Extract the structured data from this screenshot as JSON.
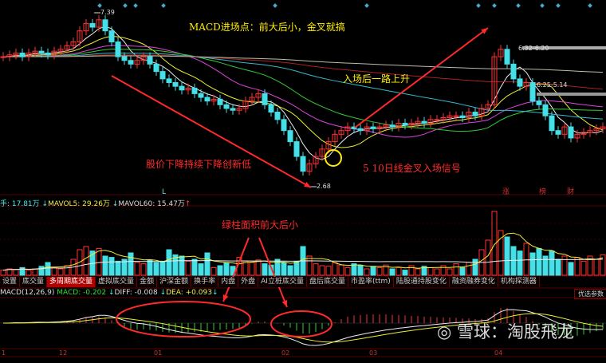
{
  "colors": {
    "up": "#ff3333",
    "down": "#44e0e8",
    "bg": "#000000",
    "annotation_yellow": "#ffee00",
    "annotation_red": "#ff2a2a"
  },
  "header": {
    "volume_info": "手: 17.81万",
    "mavol5": "MAVOL5: 29.26万",
    "mavol60": "MAVOL60: 15.47万",
    "macd_name": "MACD(12,26,9)",
    "macd_value": "MACD: -0.202",
    "diff_value": "DIFF: -0.008",
    "dea_value": "DEA: +0.093"
  },
  "price_labels": {
    "high": "7.39",
    "low": "2.68",
    "range1": "6.32-6.20",
    "range2": "6.25-5.14"
  },
  "event_marks": [
    "涨",
    "榜",
    "财"
  ],
  "low_mark": "L",
  "tabs": [
    "设置",
    "底交量",
    "多周期底交量",
    "虚拟底交量",
    "金额",
    "沪深金额",
    "换手率",
    "内盘",
    "外盘",
    "AI立桩底交量",
    "盘后底交量",
    "市盈率(ttm)",
    "陆股通持股变化",
    "融资融券变化",
    "机构探测器"
  ],
  "active_tab": 2,
  "optimize_button": "优选参数",
  "annotations": {
    "macd_entry": "MACD进场点：前大后小，金叉就搞",
    "rise": "入场后一路上升",
    "decline": "股价下降持续下降创新低",
    "golden_cross": "5 10日线金叉入场信号",
    "green_area": "绿柱面积前大后小"
  },
  "watermark": "雪球：淘股飛龙",
  "chart_data": {
    "type": "candlestick",
    "xlabel": "",
    "ylabel": "",
    "x_ticks": [
      "1",
      "12",
      "01",
      "02",
      "03",
      "04"
    ],
    "ylim": [
      2.5,
      7.6
    ],
    "high_marker": 7.39,
    "low_marker": 2.68,
    "close": [
      6.2,
      6.25,
      6.3,
      6.2,
      6.3,
      6.35,
      6.3,
      6.25,
      6.35,
      6.4,
      6.5,
      6.6,
      6.9,
      7.1,
      7.0,
      7.2,
      6.9,
      6.6,
      6.2,
      6.1,
      6.0,
      6.1,
      6.2,
      6.0,
      5.8,
      5.6,
      5.5,
      5.4,
      5.3,
      5.35,
      5.2,
      5.1,
      5.0,
      5.05,
      4.9,
      4.8,
      4.75,
      4.8,
      5.0,
      5.1,
      5.2,
      4.9,
      4.7,
      4.5,
      4.2,
      3.9,
      3.5,
      3.1,
      3.3,
      3.5,
      3.7,
      3.9,
      4.1,
      4.2,
      4.3,
      4.25,
      4.2,
      4.3,
      4.25,
      4.3,
      4.35,
      4.3,
      4.4,
      4.35,
      4.4,
      4.45,
      4.4,
      4.5,
      4.5,
      4.55,
      4.6,
      4.6,
      4.55,
      4.7,
      4.6,
      4.8,
      4.9,
      6.2,
      6.4,
      6.0,
      5.6,
      5.4,
      5.5,
      5.0,
      4.9,
      4.6,
      4.2,
      4.1,
      4.3,
      4.0,
      4.1,
      4.15,
      4.2,
      4.25,
      4.3
    ],
    "volume": [
      8,
      10,
      9,
      12,
      8,
      10,
      14,
      20,
      12,
      10,
      15,
      25,
      40,
      45,
      38,
      42,
      30,
      28,
      22,
      25,
      35,
      20,
      18,
      24,
      20,
      22,
      40,
      32,
      30,
      22,
      25,
      18,
      35,
      12,
      15,
      20,
      14,
      28,
      22,
      20,
      24,
      18,
      16,
      25,
      20,
      15,
      22,
      45,
      30,
      18,
      15,
      14,
      20,
      16,
      12,
      18,
      15,
      10,
      14,
      12,
      16,
      10,
      12,
      8,
      15,
      10,
      14,
      12,
      10,
      15,
      10,
      18,
      12,
      20,
      25,
      40,
      55,
      100,
      70,
      60,
      45,
      38,
      50,
      35,
      42,
      30,
      38,
      25,
      30,
      20,
      28,
      22,
      30,
      25,
      32
    ]
  }
}
